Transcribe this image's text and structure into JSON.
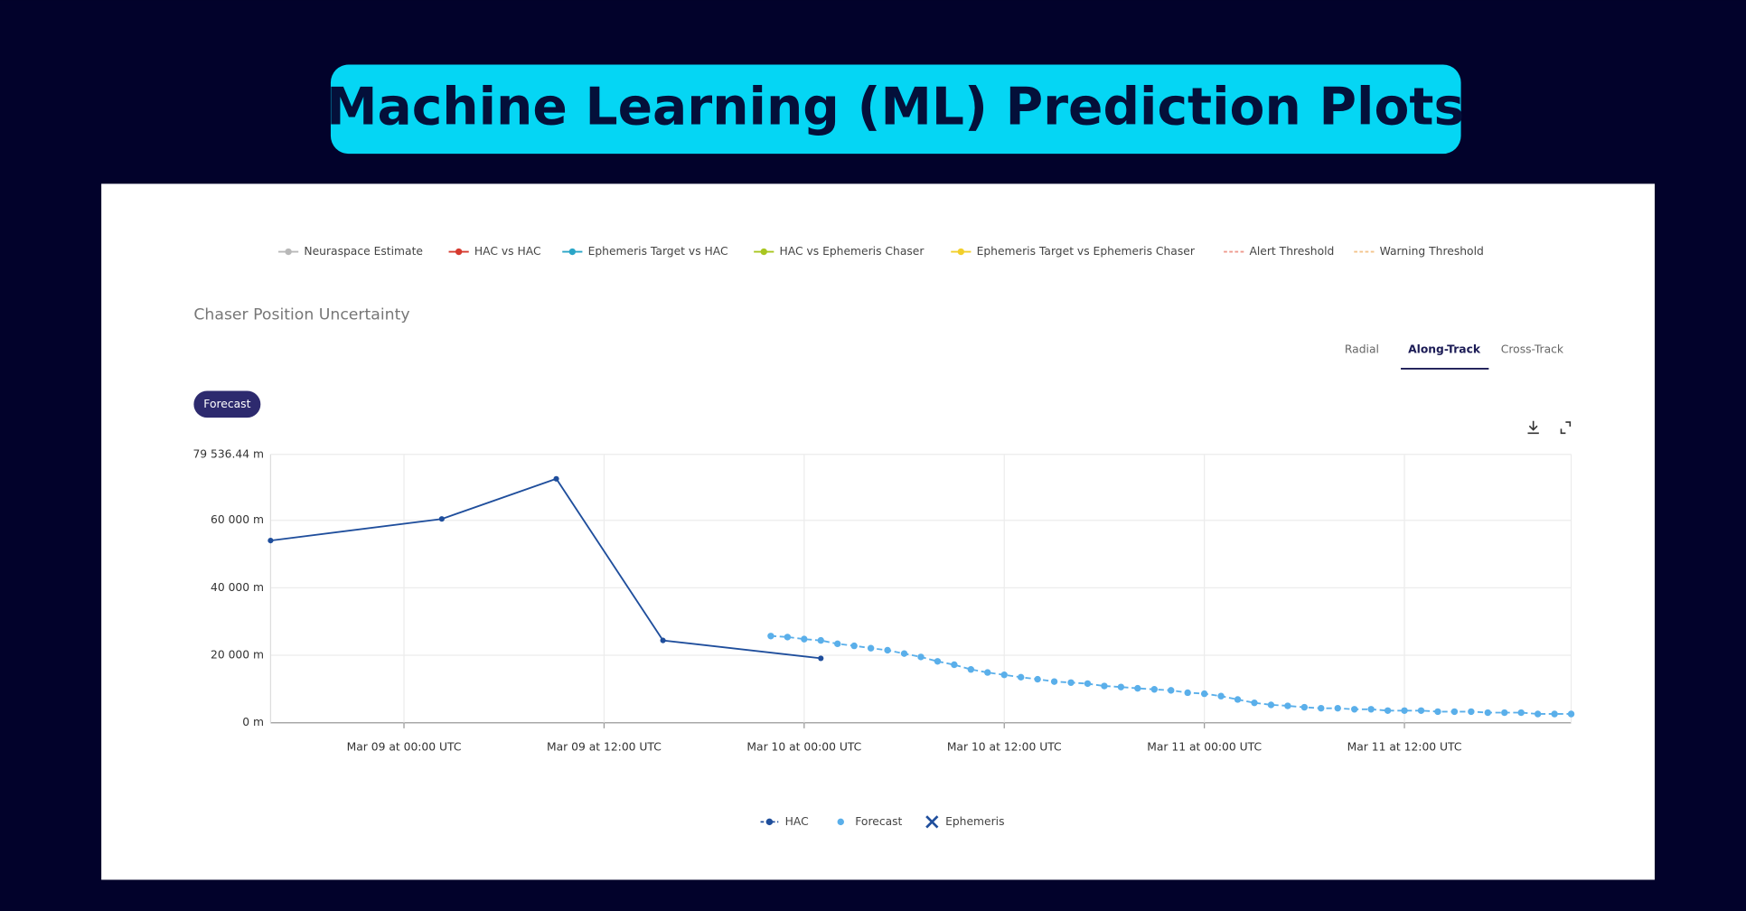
{
  "header": {
    "title": "Machine Learning (ML) Prediction Plots"
  },
  "top_legend": [
    {
      "name": "Neuraspace Estimate",
      "color": "#b8b8b8",
      "style": "solid"
    },
    {
      "name": "HAC vs HAC",
      "color": "#d63a2f",
      "style": "solid"
    },
    {
      "name": "Ephemeris Target vs HAC",
      "color": "#2aa5c7",
      "style": "solid"
    },
    {
      "name": "HAC vs Ephemeris Chaser",
      "color": "#a8c620",
      "style": "solid"
    },
    {
      "name": "Ephemeris Target vs Ephemeris Chaser",
      "color": "#f2cf2a",
      "style": "solid"
    },
    {
      "name": "Alert Threshold",
      "color": "#ee9a8e",
      "style": "dashed"
    },
    {
      "name": "Warning Threshold",
      "color": "#f3c48c",
      "style": "dashed"
    }
  ],
  "panel": {
    "title": "Chaser Position Uncertainty",
    "tabs": [
      "Radial",
      "Along-Track",
      "Cross-Track"
    ],
    "active_tab": 1,
    "button": "Forecast"
  },
  "chart_data": {
    "type": "line",
    "xlim": [
      "Mar 08 at 16:00 UTC",
      "Mar 11 at 22:00 UTC"
    ],
    "xticks": [
      "Mar 09 at 00:00 UTC",
      "Mar 09 at 12:00 UTC",
      "Mar 10 at 00:00 UTC",
      "Mar 10 at 12:00 UTC",
      "Mar 11 at 00:00 UTC",
      "Mar 11 at 12:00 UTC"
    ],
    "ylim": [
      0,
      79536.44
    ],
    "yticks": [
      {
        "value": 0,
        "label": "0 m"
      },
      {
        "value": 20000,
        "label": "20 000 m"
      },
      {
        "value": 40000,
        "label": "40 000 m"
      },
      {
        "value": 60000,
        "label": "60 000 m"
      },
      {
        "value": 79536.44,
        "label": "79 536.44 m"
      }
    ],
    "grid": true,
    "series": [
      {
        "name": "HAC",
        "color": "#1f4e9c",
        "line": "solid",
        "x": [
          "Mar 08 at 16:00 UTC",
          "Mar 09 at 02:16 UTC",
          "Mar 09 at 09:08 UTC",
          "Mar 09 at 15:32 UTC",
          "Mar 10 at 01:00 UTC"
        ],
        "values": [
          54000,
          60400,
          72300,
          24400,
          19100
        ]
      },
      {
        "name": "Forecast",
        "color": "#5aafea",
        "line": "dashed",
        "x": [
          "Mar 09 at 22:00 UTC",
          "Mar 09 at 23:00 UTC",
          "Mar 10 at 00:00 UTC",
          "Mar 10 at 01:00 UTC",
          "Mar 10 at 02:00 UTC",
          "Mar 10 at 03:00 UTC",
          "Mar 10 at 04:00 UTC",
          "Mar 10 at 05:00 UTC",
          "Mar 10 at 06:00 UTC",
          "Mar 10 at 07:00 UTC",
          "Mar 10 at 08:00 UTC",
          "Mar 10 at 09:00 UTC",
          "Mar 10 at 10:00 UTC",
          "Mar 10 at 11:00 UTC",
          "Mar 10 at 12:00 UTC",
          "Mar 10 at 13:00 UTC",
          "Mar 10 at 14:00 UTC",
          "Mar 10 at 15:00 UTC",
          "Mar 10 at 16:00 UTC",
          "Mar 10 at 17:00 UTC",
          "Mar 10 at 18:00 UTC",
          "Mar 10 at 19:00 UTC",
          "Mar 10 at 20:00 UTC",
          "Mar 10 at 21:00 UTC",
          "Mar 10 at 22:00 UTC",
          "Mar 10 at 23:00 UTC",
          "Mar 11 at 00:00 UTC",
          "Mar 11 at 01:00 UTC",
          "Mar 11 at 02:00 UTC",
          "Mar 11 at 03:00 UTC",
          "Mar 11 at 04:00 UTC",
          "Mar 11 at 05:00 UTC",
          "Mar 11 at 06:00 UTC",
          "Mar 11 at 07:00 UTC",
          "Mar 11 at 08:00 UTC",
          "Mar 11 at 09:00 UTC",
          "Mar 11 at 10:00 UTC",
          "Mar 11 at 11:00 UTC",
          "Mar 11 at 12:00 UTC",
          "Mar 11 at 13:00 UTC",
          "Mar 11 at 14:00 UTC",
          "Mar 11 at 15:00 UTC",
          "Mar 11 at 16:00 UTC",
          "Mar 11 at 17:00 UTC",
          "Mar 11 at 18:00 UTC",
          "Mar 11 at 19:00 UTC",
          "Mar 11 at 20:00 UTC",
          "Mar 11 at 21:00 UTC",
          "Mar 11 at 22:00 UTC"
        ],
        "values": [
          25700,
          25400,
          24800,
          24400,
          23400,
          22800,
          22100,
          21500,
          20500,
          19500,
          18200,
          17200,
          15800,
          14900,
          14200,
          13500,
          12900,
          12200,
          11900,
          11600,
          10900,
          10600,
          10200,
          9900,
          9600,
          8900,
          8600,
          7900,
          6900,
          5900,
          5300,
          5000,
          4600,
          4300,
          4300,
          4000,
          4000,
          3600,
          3600,
          3600,
          3300,
          3300,
          3300,
          3000,
          3000,
          3000,
          2600,
          2600,
          2600
        ]
      },
      {
        "name": "Ephemeris",
        "color": "#1f4e9c",
        "line": "none",
        "marker": "x",
        "x": [],
        "values": []
      }
    ]
  }
}
